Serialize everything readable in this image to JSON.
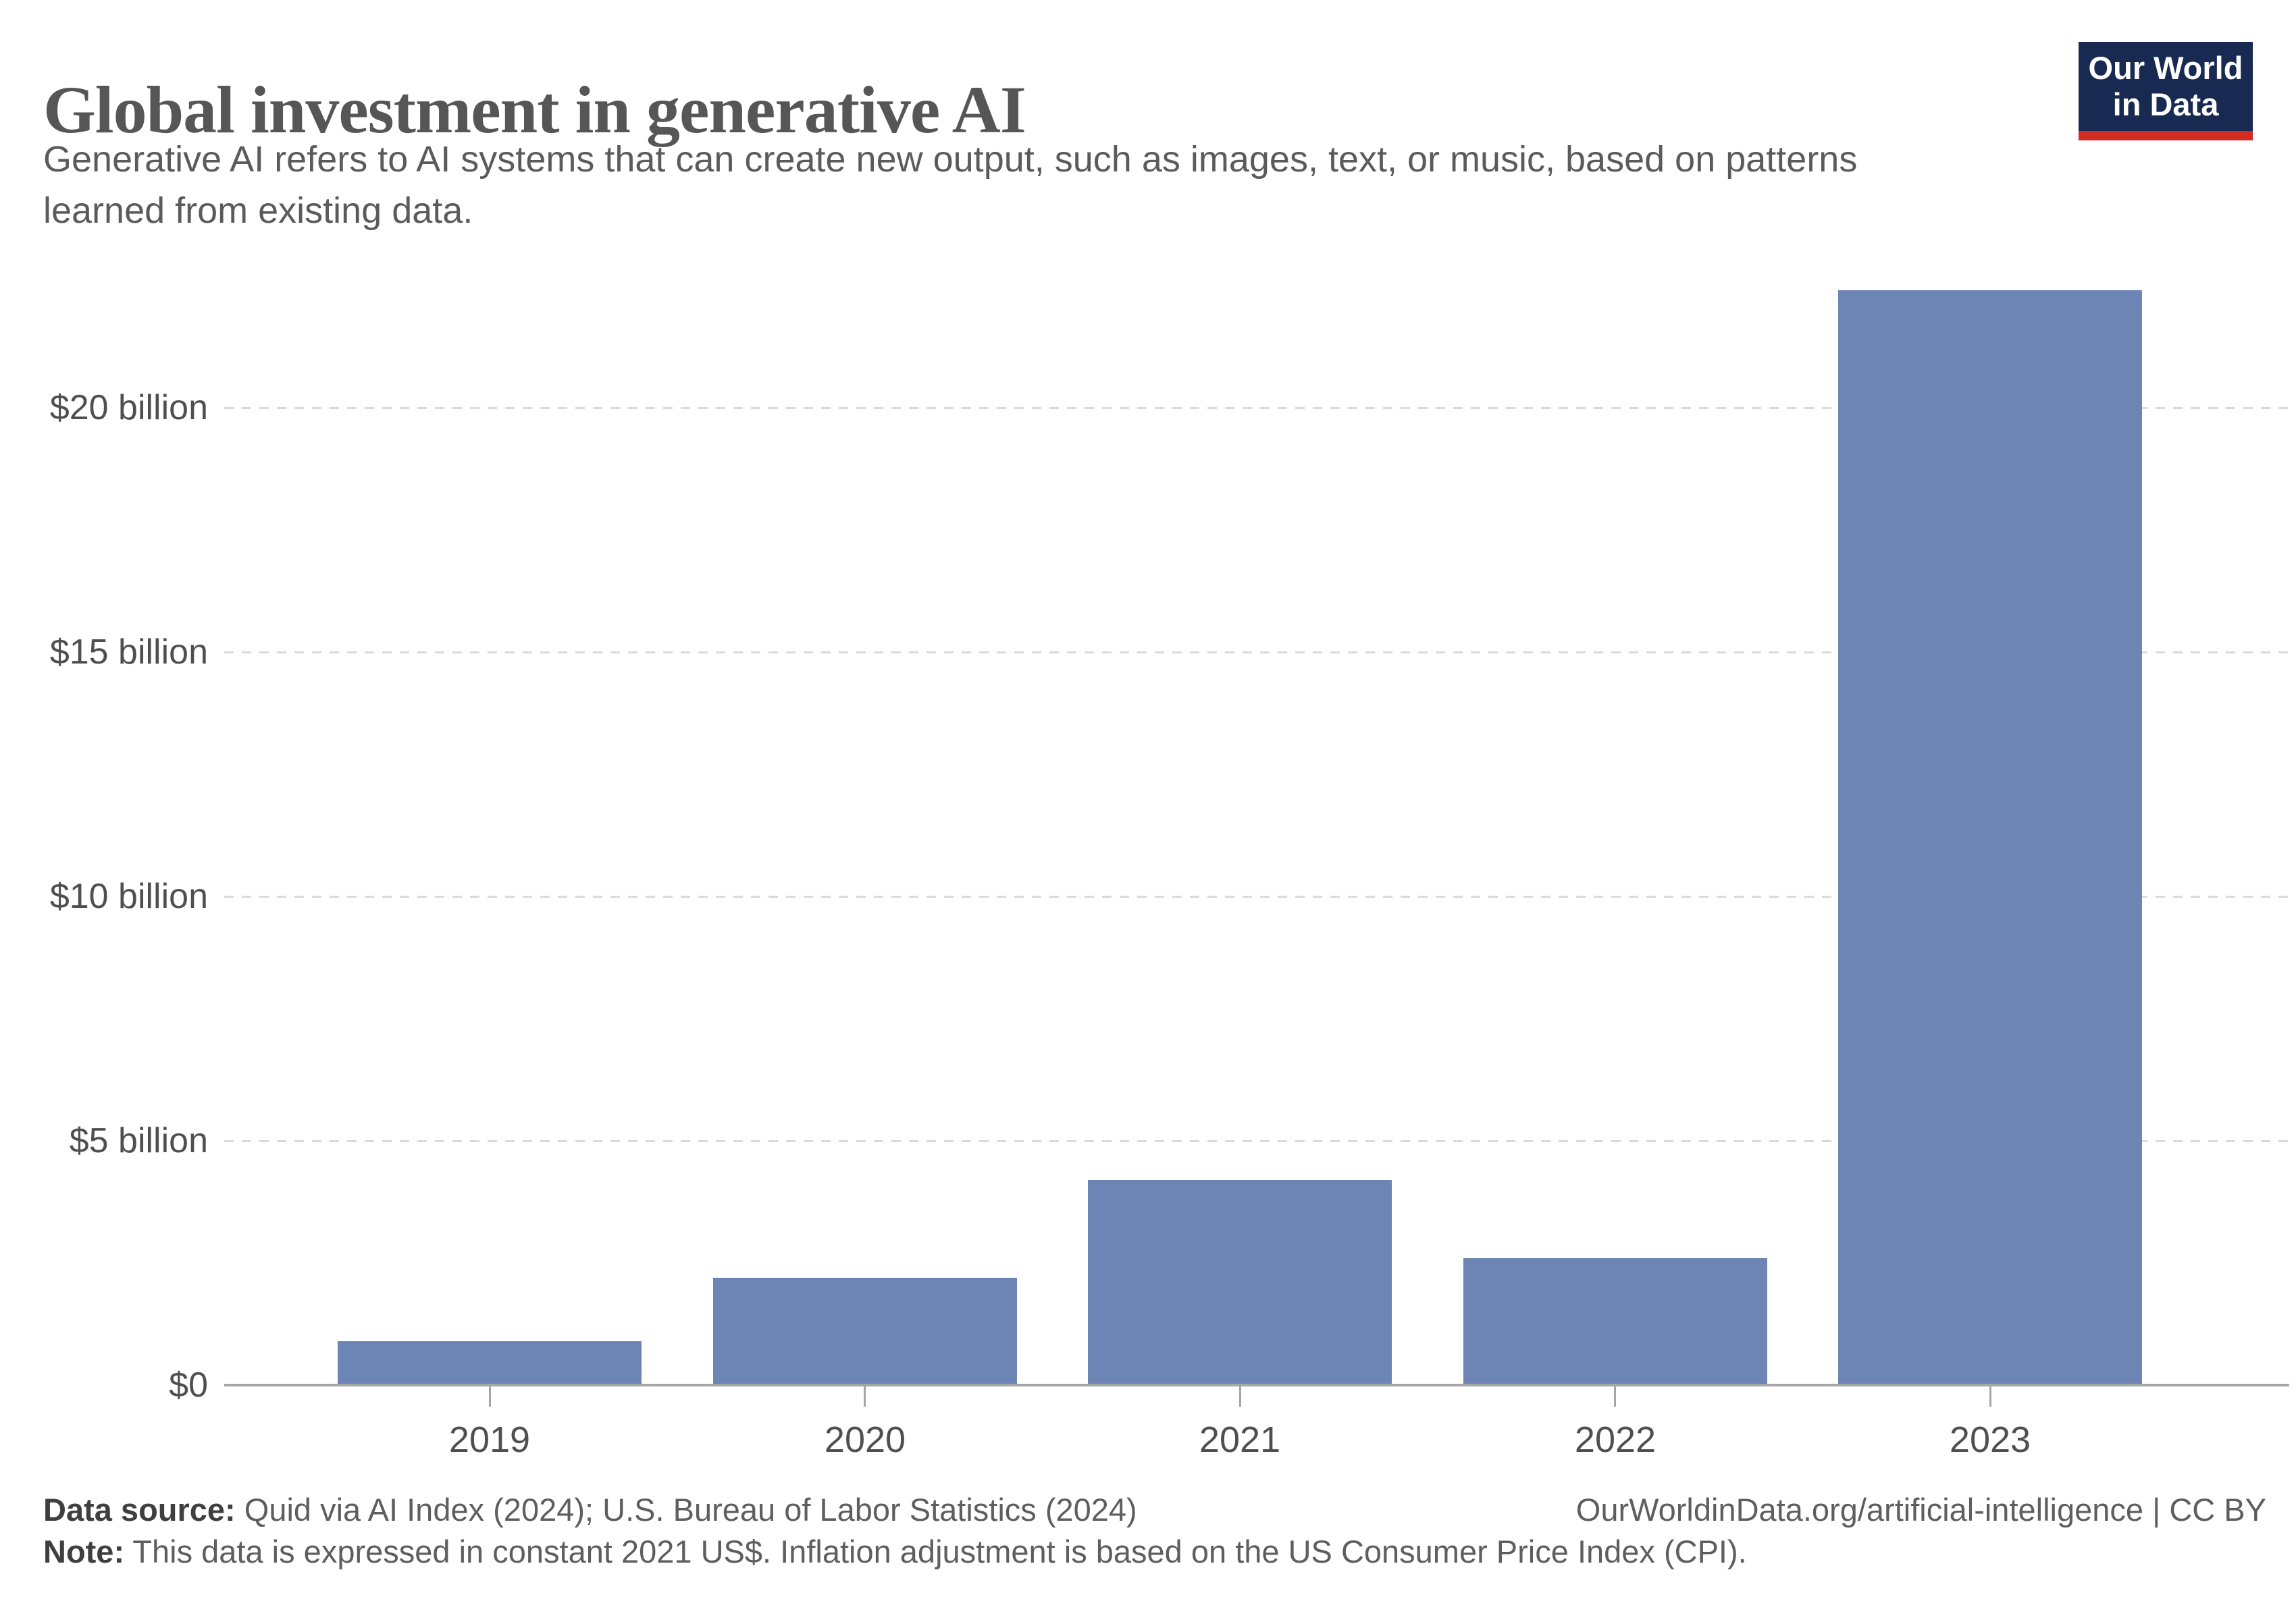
{
  "header": {
    "title": "Global investment in generative AI",
    "subtitle_line1": "Generative AI refers to AI systems that can create new output, such as images, text, or music, based on patterns",
    "subtitle_line2": "learned from existing data."
  },
  "logo": {
    "line1": "Our World",
    "line2": "in Data",
    "bg_color": "#182A52",
    "accent_color": "#D22B21"
  },
  "chart_data": {
    "type": "bar",
    "title": "Global investment in generative AI",
    "categories": [
      "2019",
      "2020",
      "2021",
      "2022",
      "2023"
    ],
    "values": [
      0.9,
      2.2,
      4.2,
      2.6,
      22.4
    ],
    "unit": "billion constant 2021 US$",
    "xlabel": "",
    "ylabel": "",
    "ylim": [
      0,
      22.5
    ],
    "yticks": [
      0,
      5,
      10,
      15,
      20
    ],
    "ytick_labels": [
      "$0",
      "$5 billion",
      "$10 billion",
      "$15 billion",
      "$20 billion"
    ],
    "bar_color": "#6C85B5",
    "grid": "horizontal-dashed",
    "legend": "none"
  },
  "footer": {
    "datasource_label": "Data source:",
    "datasource_text": " Quid via AI Index (2024); U.S. Bureau of Labor Statistics (2024)",
    "note_label": "Note:",
    "note_text": " This data is expressed in constant 2021 US$. Inflation adjustment is based on the US Consumer Price Index (CPI).",
    "link": "OurWorldinData.org/artificial-intelligence",
    "separator": " | ",
    "license": "CC BY"
  }
}
